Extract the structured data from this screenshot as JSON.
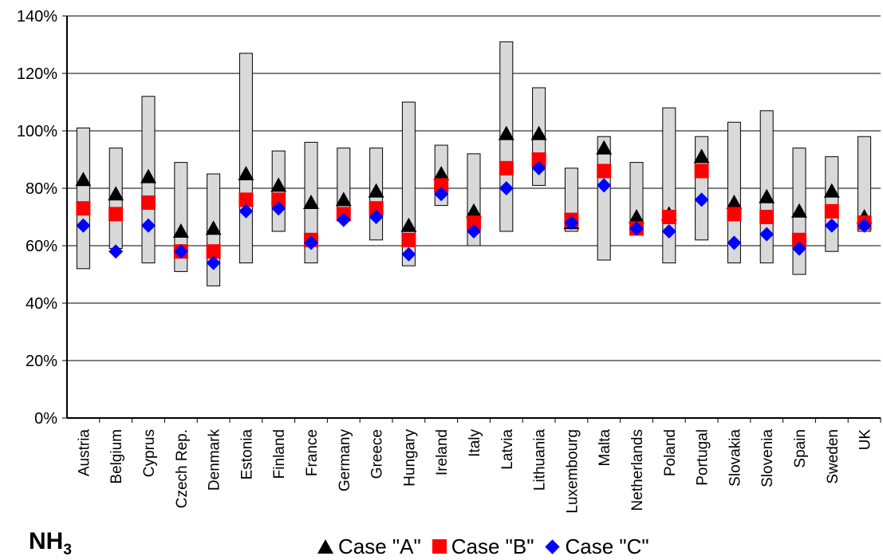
{
  "chart_data": {
    "type": "range-marker",
    "title": "",
    "xlabel": "",
    "ylabel": "",
    "y_ticks": [
      "0%",
      "20%",
      "40%",
      "60%",
      "80%",
      "100%",
      "120%",
      "140%"
    ],
    "ylim": [
      0,
      140
    ],
    "grid": true,
    "legend_position": "bottom",
    "categories": [
      "Austria",
      "Belgium",
      "Cyprus",
      "Czech Rep.",
      "Denmark",
      "Estonia",
      "Finland",
      "France",
      "Germany",
      "Greece",
      "Hungary",
      "Ireland",
      "Italy",
      "Latvia",
      "Lithuania",
      "Luxembourg",
      "Malta",
      "Netherlands",
      "Poland",
      "Portugal",
      "Slovakia",
      "Slovenia",
      "Spain",
      "Sweden",
      "UK"
    ],
    "range_low": [
      52,
      59,
      54,
      51,
      46,
      54,
      65,
      54,
      69,
      62,
      53,
      74,
      60,
      65,
      81,
      65,
      55,
      64,
      54,
      62,
      54,
      54,
      50,
      58,
      65
    ],
    "range_high": [
      101,
      94,
      112,
      89,
      85,
      127,
      93,
      96,
      94,
      94,
      110,
      95,
      92,
      131,
      115,
      87,
      98,
      89,
      108,
      98,
      103,
      107,
      94,
      91,
      98
    ],
    "series": [
      {
        "name": "Case \"A\"",
        "marker": "triangle",
        "color": "#000000",
        "values": [
          83,
          78,
          84,
          65,
          66,
          85,
          81,
          75,
          76,
          79,
          67,
          85,
          72,
          99,
          99,
          68,
          94,
          70,
          71,
          91,
          75,
          77,
          72,
          79,
          70
        ]
      },
      {
        "name": "Case \"B\"",
        "marker": "square",
        "color": "#ff0000",
        "values": [
          73,
          71,
          75,
          58,
          58,
          76,
          76,
          62,
          71,
          73,
          62,
          81,
          68,
          87,
          90,
          69,
          86,
          66,
          70,
          86,
          71,
          70,
          62,
          72,
          68
        ]
      },
      {
        "name": "Case \"C\"",
        "marker": "diamond",
        "color": "#0000ff",
        "values": [
          67,
          58,
          67,
          58,
          54,
          72,
          73,
          61,
          69,
          70,
          57,
          78,
          65,
          80,
          87,
          68,
          81,
          66,
          65,
          76,
          61,
          64,
          59,
          67,
          67
        ]
      }
    ]
  },
  "pollutant_label": "NH",
  "pollutant_subscript": "3",
  "colors": {
    "range_fill": "#d9d9d9",
    "grid": "#000000"
  }
}
